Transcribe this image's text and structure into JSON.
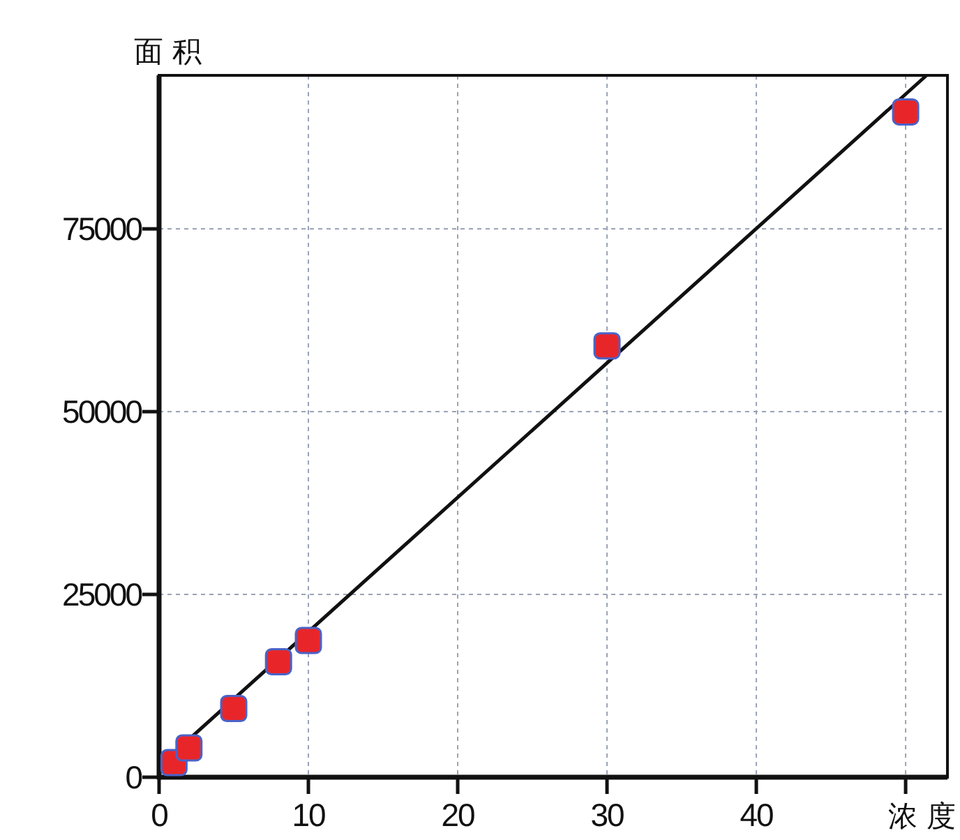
{
  "chart_data": {
    "type": "scatter",
    "xlabel": "浓 度",
    "ylabel": "面 积",
    "xlim": [
      0,
      52.8
    ],
    "ylim": [
      0,
      96000
    ],
    "xticks": [
      0,
      10,
      20,
      30,
      40,
      {
        "value": 50,
        "label": null
      }
    ],
    "yticks": [
      0,
      25000,
      50000,
      75000
    ],
    "grid": true,
    "marker": "square",
    "series": [
      {
        "color": "#e8262a",
        "x": [
          1,
          2,
          5,
          8,
          10,
          30,
          50
        ],
        "values": [
          2000,
          4000,
          9400,
          15800,
          18700,
          59000,
          91000
        ]
      },
      {
        "type": "line",
        "marker": "none",
        "color": "#111111",
        "x": [
          0,
          51.4
        ],
        "values": [
          1500,
          96000
        ]
      }
    ]
  }
}
